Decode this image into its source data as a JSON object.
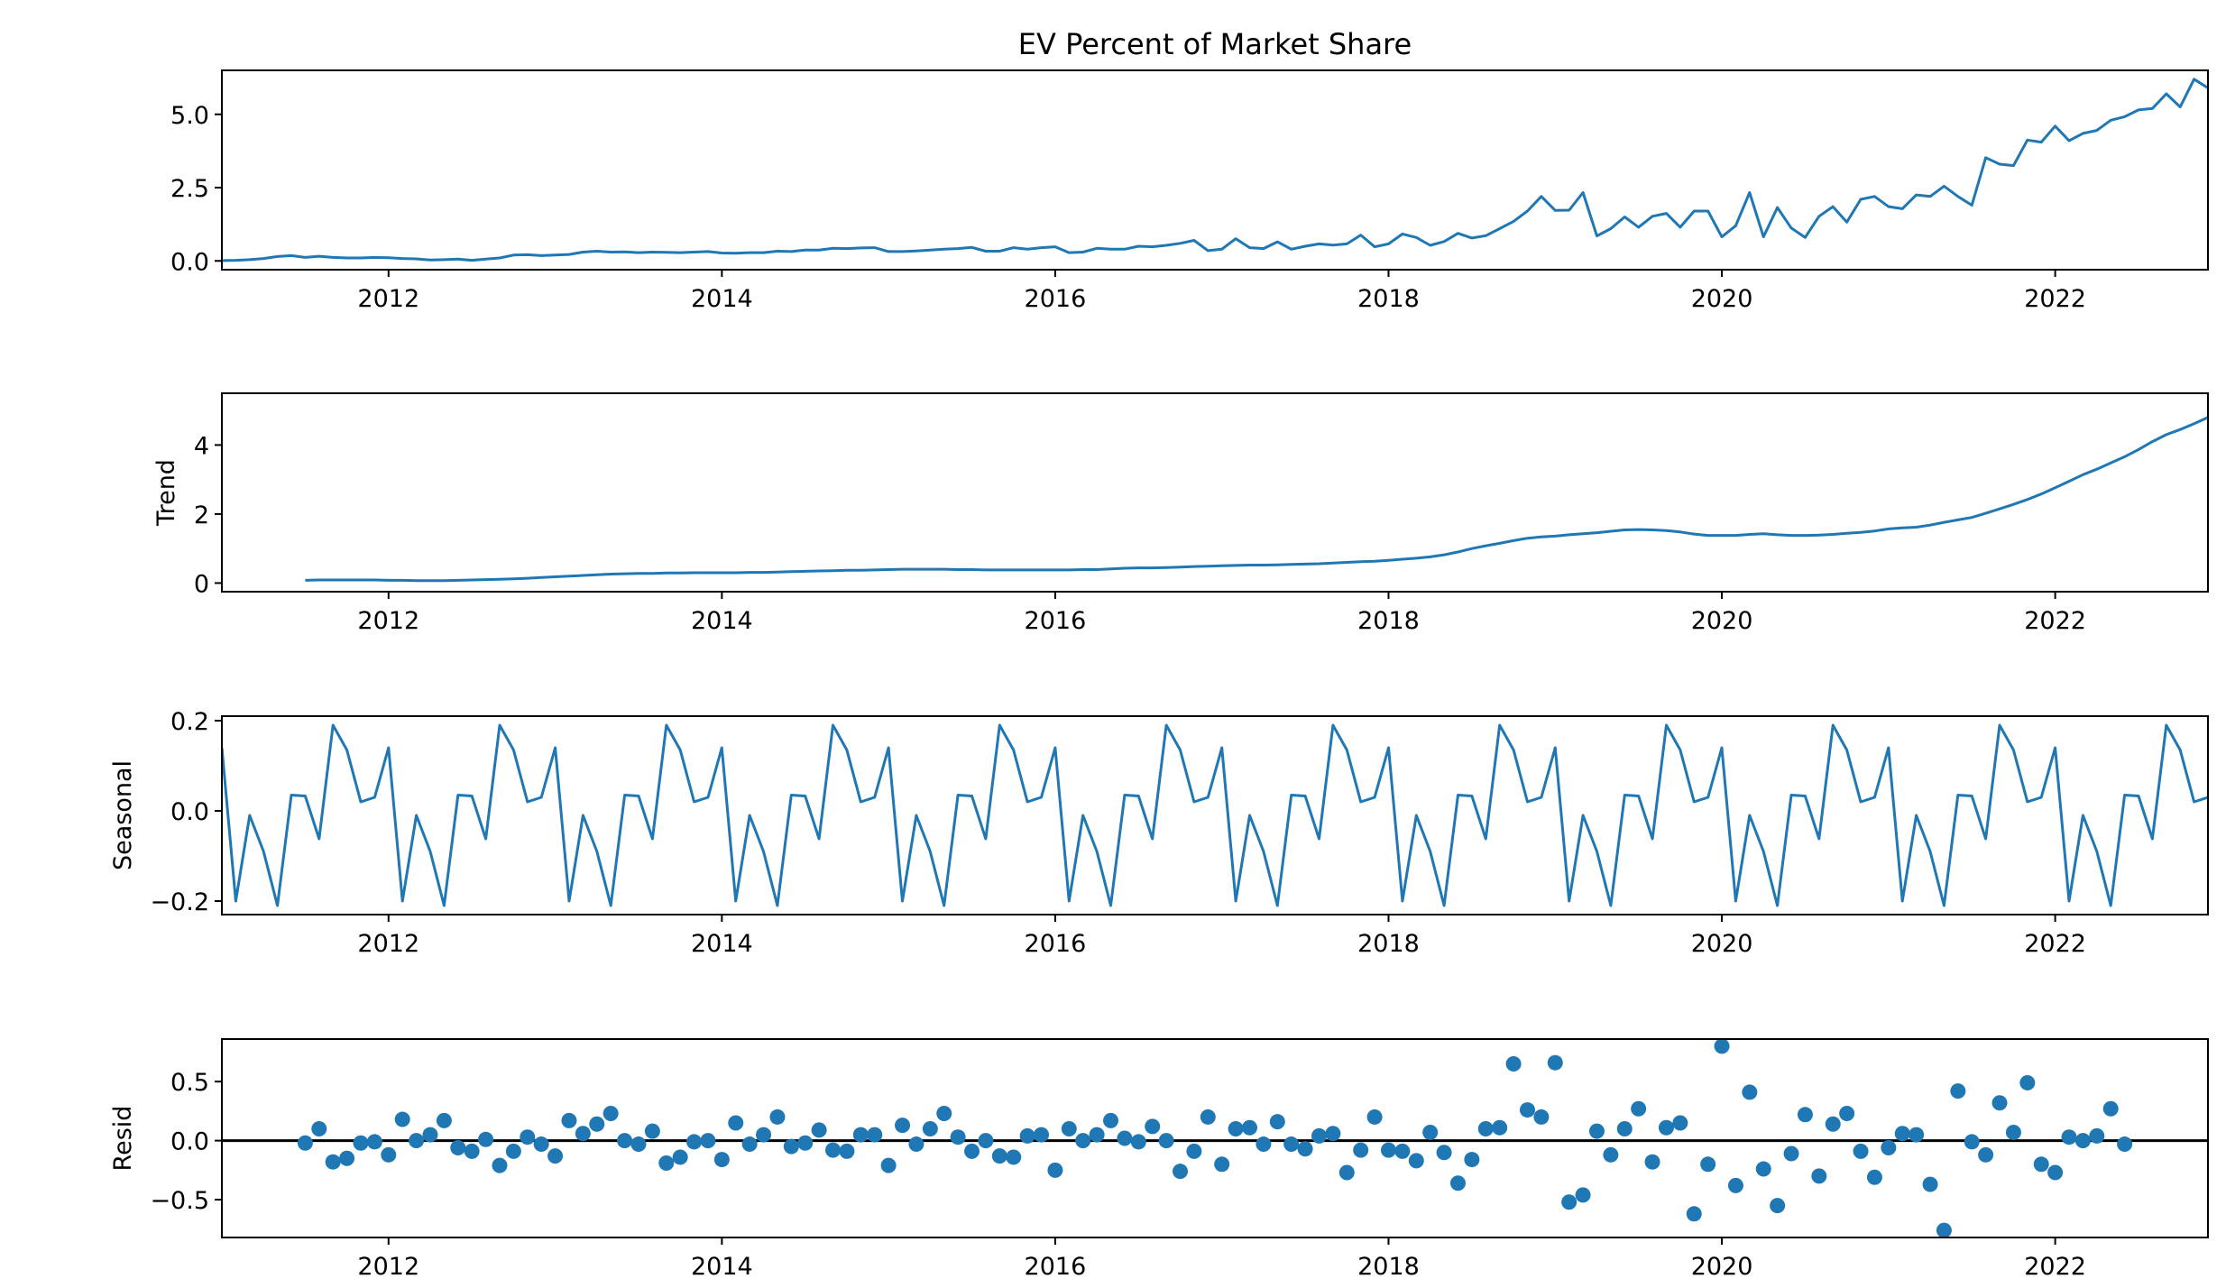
{
  "chart_data": {
    "type": "line",
    "title": "EV Percent of Market Share",
    "colors": {
      "series": "#1f77b4",
      "axes": "#000000",
      "zero_line": "#000000"
    },
    "grid": false,
    "legend": "none",
    "xlim": [
      "2011-01",
      "2022-12"
    ],
    "x_start": "2011-01",
    "x_tick_labels": [
      "2012",
      "2014",
      "2016",
      "2018",
      "2020",
      "2022"
    ],
    "panels": [
      {
        "name": "observed",
        "type": "line",
        "ylabel": "",
        "ylim": [
          -0.3,
          6.5
        ],
        "y_ticks": [
          0,
          2.5,
          5
        ],
        "y_tick_labels": [
          "0.0",
          "2.5",
          "5.0"
        ],
        "values": [
          0.01,
          0.02,
          0.04,
          0.08,
          0.15,
          0.18,
          0.12,
          0.16,
          0.12,
          0.1,
          0.1,
          0.12,
          0.11,
          0.08,
          0.07,
          0.03,
          0.04,
          0.06,
          0.02,
          0.06,
          0.1,
          0.2,
          0.21,
          0.18,
          0.2,
          0.22,
          0.3,
          0.33,
          0.3,
          0.31,
          0.28,
          0.3,
          0.29,
          0.28,
          0.3,
          0.32,
          0.27,
          0.26,
          0.28,
          0.28,
          0.33,
          0.32,
          0.37,
          0.37,
          0.43,
          0.42,
          0.44,
          0.45,
          0.32,
          0.32,
          0.34,
          0.37,
          0.4,
          0.42,
          0.46,
          0.33,
          0.33,
          0.45,
          0.4,
          0.45,
          0.48,
          0.28,
          0.3,
          0.43,
          0.4,
          0.4,
          0.5,
          0.48,
          0.53,
          0.6,
          0.7,
          0.35,
          0.4,
          0.76,
          0.45,
          0.42,
          0.65,
          0.4,
          0.5,
          0.58,
          0.54,
          0.58,
          0.88,
          0.48,
          0.58,
          0.92,
          0.8,
          0.53,
          0.66,
          0.94,
          0.78,
          0.86,
          1.1,
          1.35,
          1.7,
          2.2,
          1.72,
          1.73,
          2.33,
          0.85,
          1.1,
          1.5,
          1.15,
          1.52,
          1.62,
          1.15,
          1.7,
          1.7,
          0.82,
          1.2,
          2.33,
          0.82,
          1.82,
          1.12,
          0.8,
          1.52,
          1.85,
          1.32,
          2.1,
          2.2,
          1.85,
          1.78,
          2.25,
          2.2,
          2.55,
          2.2,
          1.9,
          3.52,
          3.3,
          3.25,
          4.12,
          4.05,
          4.6,
          4.1,
          4.35,
          4.45,
          4.8,
          4.92,
          5.15,
          5.2,
          5.7,
          5.25,
          6.2,
          5.9,
          5.5,
          6.18
        ]
      },
      {
        "name": "trend",
        "type": "line",
        "ylabel": "Trend",
        "ylim": [
          -0.25,
          5.5
        ],
        "y_ticks": [
          0,
          2,
          4
        ],
        "y_tick_labels": [
          "0",
          "2",
          "4"
        ],
        "values": [
          null,
          null,
          null,
          null,
          null,
          null,
          0.08,
          0.09,
          0.09,
          0.09,
          0.09,
          0.09,
          0.08,
          0.08,
          0.07,
          0.07,
          0.07,
          0.08,
          0.09,
          0.1,
          0.11,
          0.12,
          0.14,
          0.16,
          0.18,
          0.2,
          0.22,
          0.24,
          0.26,
          0.27,
          0.28,
          0.28,
          0.29,
          0.29,
          0.3,
          0.3,
          0.3,
          0.3,
          0.31,
          0.31,
          0.32,
          0.33,
          0.34,
          0.35,
          0.36,
          0.37,
          0.37,
          0.38,
          0.39,
          0.4,
          0.4,
          0.4,
          0.4,
          0.39,
          0.39,
          0.38,
          0.38,
          0.38,
          0.38,
          0.38,
          0.38,
          0.38,
          0.39,
          0.39,
          0.41,
          0.43,
          0.44,
          0.44,
          0.45,
          0.46,
          0.48,
          0.49,
          0.5,
          0.51,
          0.52,
          0.52,
          0.53,
          0.54,
          0.55,
          0.56,
          0.58,
          0.6,
          0.62,
          0.63,
          0.66,
          0.69,
          0.72,
          0.76,
          0.82,
          0.9,
          1.0,
          1.08,
          1.15,
          1.23,
          1.3,
          1.34,
          1.36,
          1.4,
          1.43,
          1.46,
          1.5,
          1.54,
          1.55,
          1.54,
          1.52,
          1.48,
          1.42,
          1.38,
          1.38,
          1.38,
          1.41,
          1.43,
          1.4,
          1.38,
          1.38,
          1.39,
          1.41,
          1.44,
          1.47,
          1.51,
          1.57,
          1.6,
          1.62,
          1.68,
          1.76,
          1.83,
          1.9,
          2.02,
          2.15,
          2.28,
          2.42,
          2.58,
          2.76,
          2.95,
          3.14,
          3.3,
          3.48,
          3.66,
          3.87,
          4.1,
          4.3,
          4.45,
          4.62,
          4.8,
          4.96,
          5.08,
          5.2,
          null,
          null,
          null,
          null,
          null,
          null
        ]
      },
      {
        "name": "seasonal",
        "type": "line",
        "ylabel": "Seasonal",
        "ylim": [
          -0.23,
          0.21
        ],
        "y_ticks": [
          -0.2,
          0,
          0.2
        ],
        "y_tick_labels": [
          "−0.2",
          "0.0",
          "0.2"
        ],
        "pattern": [
          0.14,
          -0.2,
          -0.01,
          -0.09,
          -0.21,
          0.035,
          0.033,
          -0.062,
          0.19,
          0.135,
          0.02,
          0.03
        ],
        "repeat_months": 144
      },
      {
        "name": "resid",
        "type": "scatter",
        "ylabel": "Resid",
        "ylim": [
          -0.82,
          0.86
        ],
        "y_ticks": [
          -0.5,
          0,
          0.5
        ],
        "y_tick_labels": [
          "−0.5",
          "0.0",
          "0.5"
        ],
        "zero_line": true,
        "values": [
          null,
          null,
          null,
          null,
          null,
          null,
          -0.02,
          0.1,
          -0.18,
          -0.15,
          -0.02,
          -0.01,
          -0.12,
          0.18,
          0.0,
          0.05,
          0.17,
          -0.06,
          -0.09,
          0.01,
          -0.21,
          -0.09,
          0.03,
          -0.03,
          -0.13,
          0.17,
          0.06,
          0.14,
          0.23,
          0.0,
          -0.03,
          0.08,
          -0.19,
          -0.14,
          -0.01,
          -0.0,
          -0.16,
          0.15,
          -0.03,
          0.05,
          0.2,
          -0.05,
          -0.02,
          0.09,
          -0.08,
          -0.09,
          0.05,
          0.05,
          -0.21,
          0.13,
          -0.03,
          0.1,
          0.23,
          0.03,
          -0.09,
          0.0,
          -0.13,
          -0.14,
          0.04,
          0.05,
          -0.25,
          0.1,
          -0.0,
          0.05,
          0.17,
          0.02,
          -0.01,
          0.12,
          -0.0,
          -0.26,
          -0.09,
          0.2,
          -0.2,
          0.1,
          0.11,
          -0.03,
          0.16,
          -0.03,
          -0.07,
          0.04,
          0.06,
          -0.27,
          -0.08,
          0.2,
          -0.08,
          -0.09,
          -0.17,
          0.07,
          -0.1,
          -0.36,
          -0.16,
          0.1,
          0.11,
          0.65,
          0.26,
          0.2,
          0.66,
          -0.52,
          -0.46,
          0.08,
          -0.12,
          0.1,
          0.27,
          -0.18,
          0.11,
          0.15,
          -0.62,
          -0.2,
          0.8,
          -0.38,
          0.41,
          -0.24,
          -0.55,
          -0.11,
          0.22,
          -0.3,
          0.14,
          0.23,
          -0.09,
          -0.31,
          -0.06,
          0.06,
          0.05,
          -0.37,
          -0.76,
          0.42,
          -0.01,
          -0.12,
          0.32,
          0.07,
          0.49,
          -0.2,
          -0.27,
          0.03,
          0.0,
          0.04,
          0.27,
          -0.03,
          null,
          null,
          null,
          null,
          null,
          null
        ]
      }
    ]
  }
}
